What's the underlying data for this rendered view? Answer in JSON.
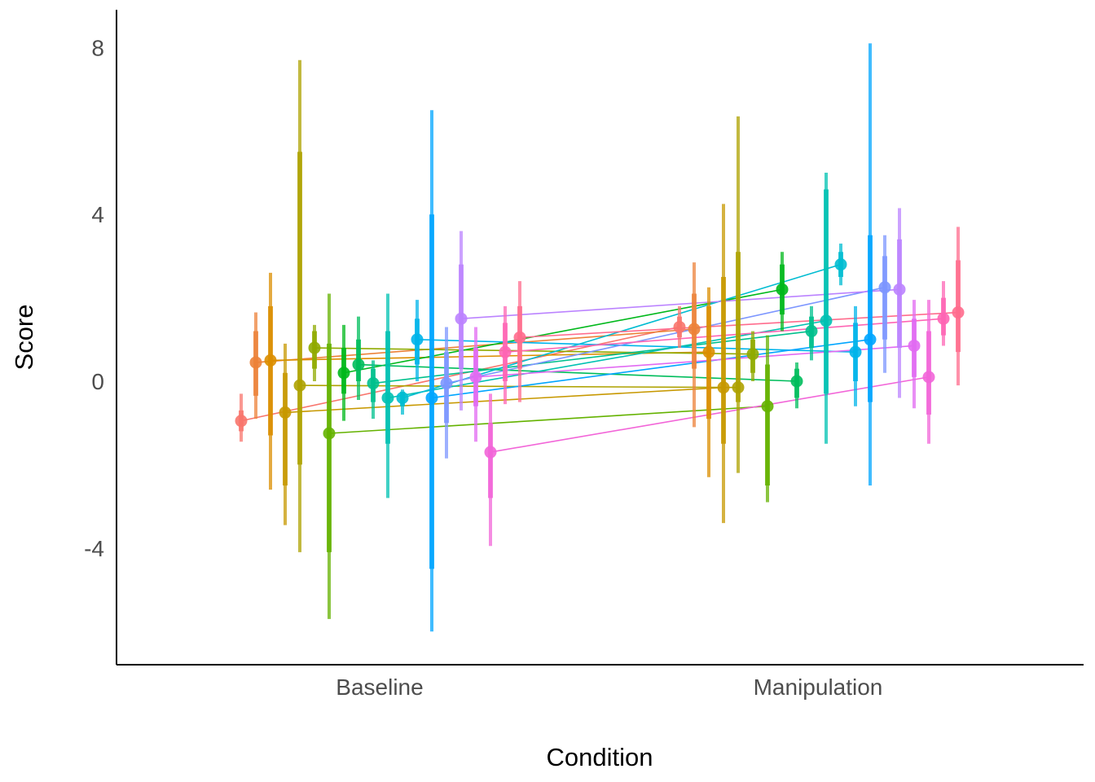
{
  "chart_data": {
    "type": "scatter",
    "title": "",
    "xlabel": "Condition",
    "ylabel": "Score",
    "categories": [
      "Baseline",
      "Manipulation"
    ],
    "ylim": [
      -6.7,
      8.8
    ],
    "yticks": [
      -4,
      0,
      4,
      8
    ],
    "ytick_labels": [
      "-4",
      "0",
      "4",
      "8"
    ],
    "grid": false,
    "legend": "none",
    "series": [
      {
        "color": "#F8766D",
        "values": [
          -0.95,
          1.3
        ],
        "ci_outer": [
          [
            -1.45,
            -0.3
          ],
          [
            0.8,
            1.8
          ]
        ],
        "ci_inner": [
          [
            -1.2,
            -0.7
          ],
          [
            1.05,
            1.55
          ]
        ]
      },
      {
        "color": "#EC8239",
        "values": [
          0.45,
          1.25
        ],
        "ci_outer": [
          [
            -0.9,
            1.65
          ],
          [
            -1.1,
            2.85
          ]
        ],
        "ci_inner": [
          [
            -0.35,
            1.2
          ],
          [
            0.3,
            2.1
          ]
        ]
      },
      {
        "color": "#DB8E00",
        "values": [
          0.5,
          0.7
        ],
        "ci_outer": [
          [
            -2.6,
            2.6
          ],
          [
            -2.3,
            2.25
          ]
        ],
        "ci_inner": [
          [
            -1.3,
            1.8
          ],
          [
            -0.9,
            1.8
          ]
        ]
      },
      {
        "color": "#C79800",
        "values": [
          -0.75,
          -0.15
        ],
        "ci_outer": [
          [
            -3.45,
            0.9
          ],
          [
            -3.4,
            4.25
          ]
        ],
        "ci_inner": [
          [
            -2.5,
            0.2
          ],
          [
            -1.5,
            2.5
          ]
        ]
      },
      {
        "color": "#AEA200",
        "values": [
          -0.1,
          -0.15
        ],
        "ci_outer": [
          [
            -4.1,
            7.7
          ],
          [
            -2.2,
            6.35
          ]
        ],
        "ci_inner": [
          [
            -2.0,
            5.5
          ],
          [
            -0.5,
            3.1
          ]
        ]
      },
      {
        "color": "#8FAA00",
        "values": [
          0.8,
          0.65
        ],
        "ci_outer": [
          [
            0.0,
            1.35
          ],
          [
            0.0,
            1.2
          ]
        ],
        "ci_inner": [
          [
            0.3,
            1.2
          ],
          [
            0.2,
            1.0
          ]
        ]
      },
      {
        "color": "#64B200",
        "values": [
          -1.25,
          -0.6
        ],
        "ci_outer": [
          [
            -5.7,
            2.1
          ],
          [
            -2.9,
            1.1
          ]
        ],
        "ci_inner": [
          [
            -4.1,
            0.9
          ],
          [
            -2.5,
            0.4
          ]
        ]
      },
      {
        "color": "#00B81B",
        "values": [
          0.2,
          2.2
        ],
        "ci_outer": [
          [
            -0.95,
            1.35
          ],
          [
            1.2,
            3.1
          ]
        ],
        "ci_inner": [
          [
            -0.3,
            0.8
          ],
          [
            1.6,
            2.8
          ]
        ]
      },
      {
        "color": "#00BD5C",
        "values": [
          0.4,
          0.0
        ],
        "ci_outer": [
          [
            -0.45,
            1.55
          ],
          [
            -0.65,
            0.45
          ]
        ],
        "ci_inner": [
          [
            0.0,
            1.0
          ],
          [
            -0.4,
            0.3
          ]
        ]
      },
      {
        "color": "#00C08D",
        "values": [
          -0.05,
          1.2
        ],
        "ci_outer": [
          [
            -0.9,
            0.5
          ],
          [
            0.5,
            1.8
          ]
        ],
        "ci_inner": [
          [
            -0.5,
            0.3
          ],
          [
            0.8,
            1.55
          ]
        ]
      },
      {
        "color": "#00C1B2",
        "values": [
          -0.4,
          1.45
        ],
        "ci_outer": [
          [
            -2.8,
            2.1
          ],
          [
            -1.5,
            5.0
          ]
        ],
        "ci_inner": [
          [
            -1.5,
            1.2
          ],
          [
            -0.3,
            4.6
          ]
        ]
      },
      {
        "color": "#00BCD1",
        "values": [
          -0.4,
          2.8
        ],
        "ci_outer": [
          [
            -0.8,
            -0.2
          ],
          [
            2.3,
            3.3
          ]
        ],
        "ci_inner": [
          [
            -0.6,
            -0.25
          ],
          [
            2.5,
            3.1
          ]
        ]
      },
      {
        "color": "#00B4EA",
        "values": [
          1.0,
          0.7
        ],
        "ci_outer": [
          [
            0.0,
            1.95
          ],
          [
            -0.6,
            1.8
          ]
        ],
        "ci_inner": [
          [
            0.4,
            1.5
          ],
          [
            0.0,
            1.4
          ]
        ]
      },
      {
        "color": "#00A5FF",
        "values": [
          -0.4,
          1.0
        ],
        "ci_outer": [
          [
            -6.0,
            6.5
          ],
          [
            -2.5,
            8.1
          ]
        ],
        "ci_inner": [
          [
            -4.5,
            4.0
          ],
          [
            -0.5,
            3.5
          ]
        ]
      },
      {
        "color": "#7C96FF",
        "values": [
          -0.05,
          2.25
        ],
        "ci_outer": [
          [
            -1.85,
            1.3
          ],
          [
            0.2,
            3.5
          ]
        ],
        "ci_inner": [
          [
            -1.0,
            0.7
          ],
          [
            1.0,
            3.0
          ]
        ]
      },
      {
        "color": "#BB83FF",
        "values": [
          1.5,
          2.2
        ],
        "ci_outer": [
          [
            -0.7,
            3.6
          ],
          [
            -0.4,
            4.15
          ]
        ],
        "ci_inner": [
          [
            0.3,
            2.8
          ],
          [
            0.8,
            3.4
          ]
        ]
      },
      {
        "color": "#E16AF2",
        "values": [
          0.1,
          0.85
        ],
        "ci_outer": [
          [
            -1.45,
            1.3
          ],
          [
            -0.65,
            1.95
          ]
        ],
        "ci_inner": [
          [
            -0.6,
            0.8
          ],
          [
            0.1,
            1.5
          ]
        ]
      },
      {
        "color": "#F265D8",
        "values": [
          -1.7,
          0.1
        ],
        "ci_outer": [
          [
            -3.95,
            -0.3
          ],
          [
            -1.5,
            1.95
          ]
        ],
        "ci_inner": [
          [
            -2.8,
            -1.0
          ],
          [
            -0.8,
            1.2
          ]
        ]
      },
      {
        "color": "#FE65B4",
        "values": [
          0.7,
          1.5
        ],
        "ci_outer": [
          [
            -0.55,
            1.8
          ],
          [
            0.85,
            2.4
          ]
        ],
        "ci_inner": [
          [
            0.0,
            1.4
          ],
          [
            1.1,
            2.0
          ]
        ]
      },
      {
        "color": "#FF6C8D",
        "values": [
          1.05,
          1.65
        ],
        "ci_outer": [
          [
            -0.5,
            2.4
          ],
          [
            -0.1,
            3.7
          ]
        ],
        "ci_inner": [
          [
            0.3,
            1.8
          ],
          [
            0.7,
            2.9
          ]
        ]
      }
    ]
  }
}
